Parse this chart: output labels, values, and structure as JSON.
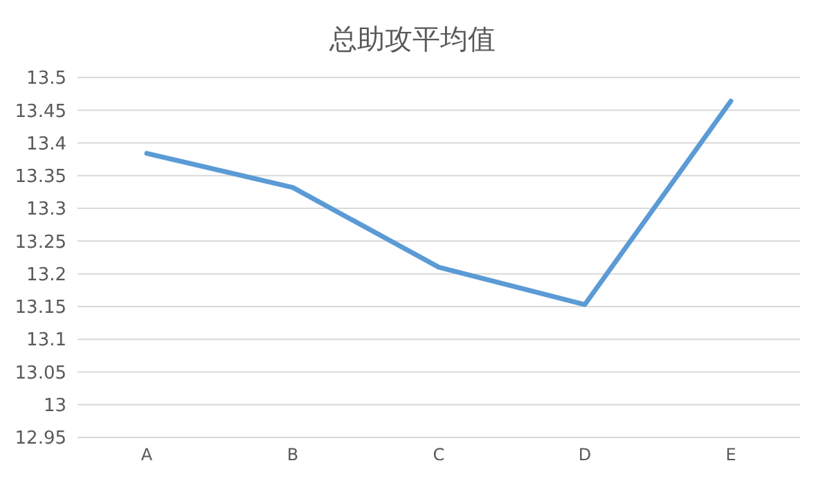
{
  "chart_data": {
    "type": "line",
    "title": "总助攻平均值",
    "categories": [
      "A",
      "B",
      "C",
      "D",
      "E"
    ],
    "series": [
      {
        "color": "#5b9bd5",
        "values": [
          13.384,
          13.332,
          13.21,
          13.153,
          13.464
        ]
      }
    ],
    "ylim": [
      12.95,
      13.5
    ],
    "yticks": [
      12.95,
      13,
      13.05,
      13.1,
      13.15,
      13.2,
      13.25,
      13.3,
      13.35,
      13.4,
      13.45,
      13.5
    ],
    "grid": "y",
    "legend": false,
    "marker": "none"
  }
}
